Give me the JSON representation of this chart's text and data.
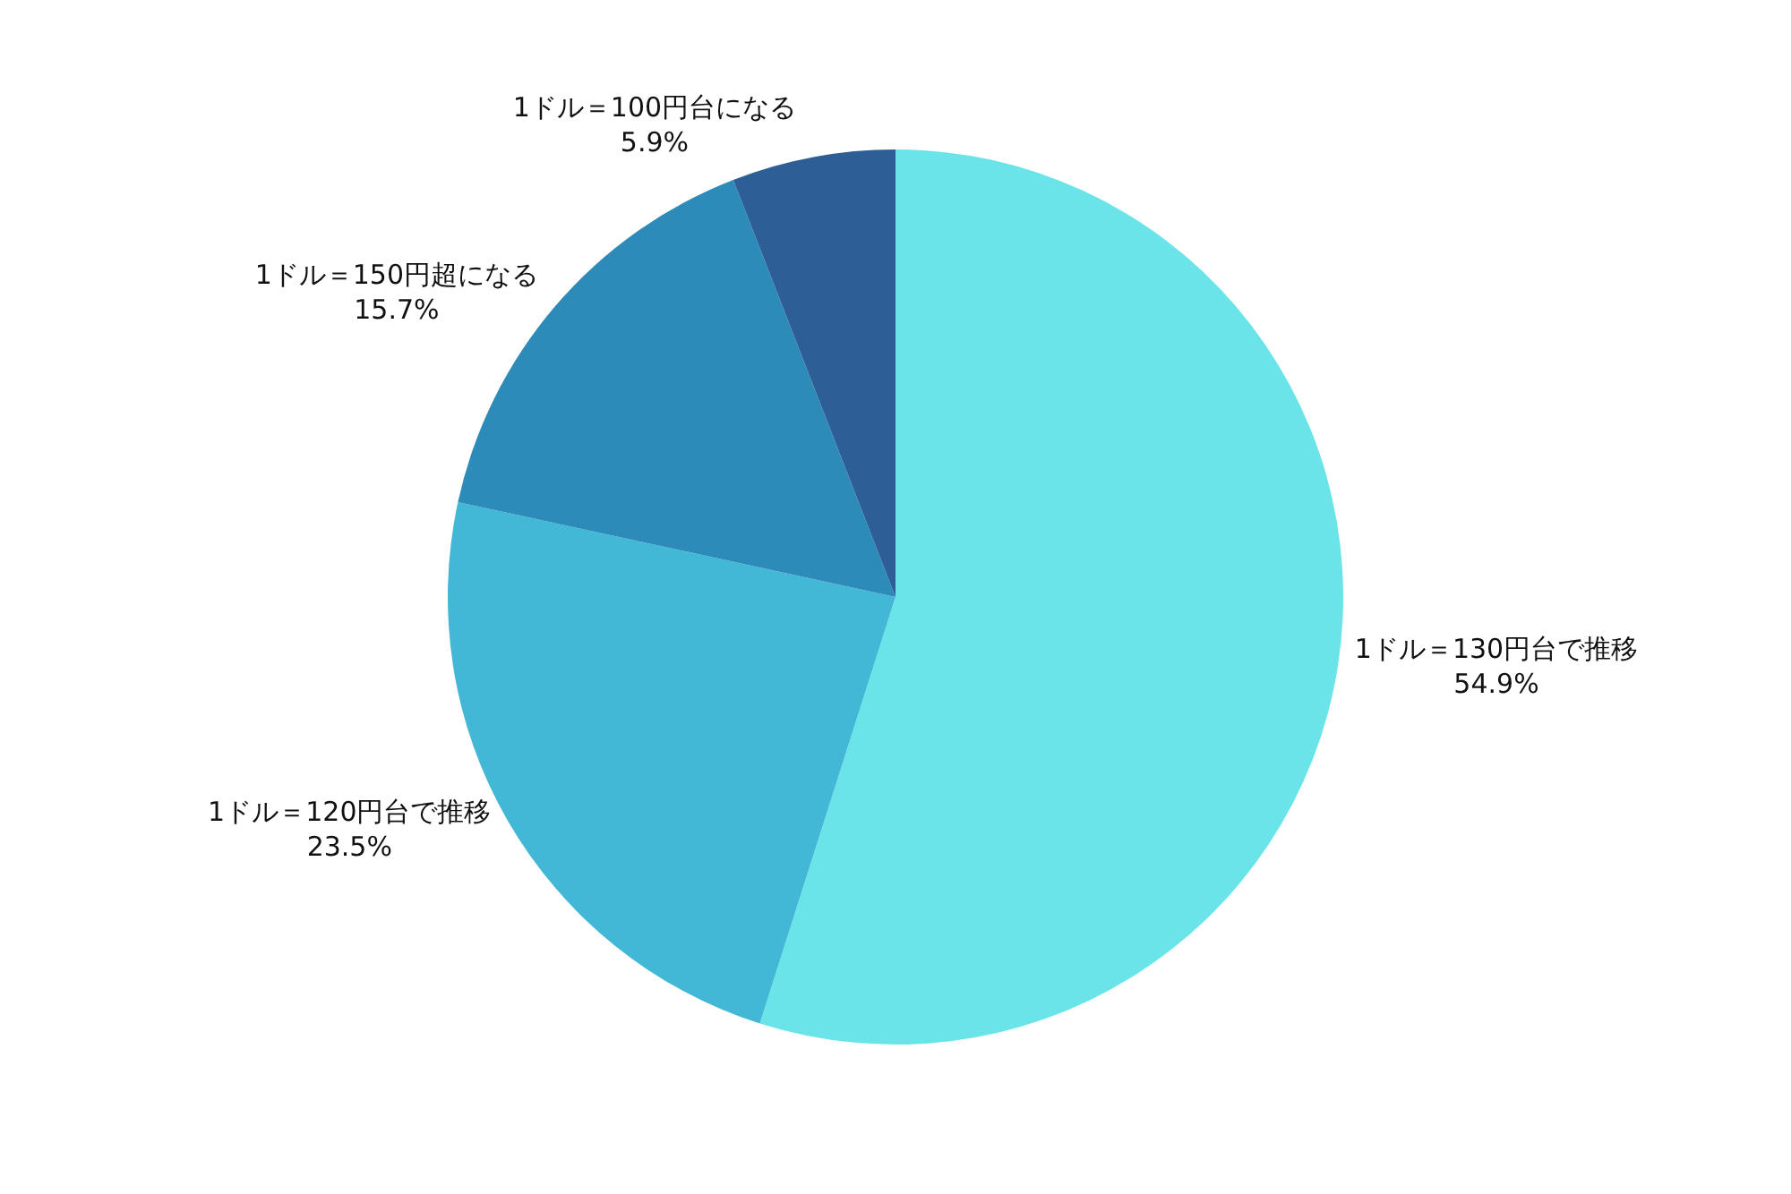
{
  "chart_data": {
    "type": "pie",
    "categories": [
      "1ドル＝130円台で推移",
      "1ドル＝120円台で推移",
      "1ドル＝150円超になる",
      "1ドル＝100円台になる"
    ],
    "values": [
      54.9,
      23.5,
      15.7,
      5.9
    ],
    "value_labels": [
      "54.9%",
      "23.5%",
      "15.7%",
      "5.9%"
    ],
    "colors": [
      "#6ae4e8",
      "#43b8d6",
      "#2d8bba",
      "#2e5e96"
    ],
    "legend": false
  }
}
